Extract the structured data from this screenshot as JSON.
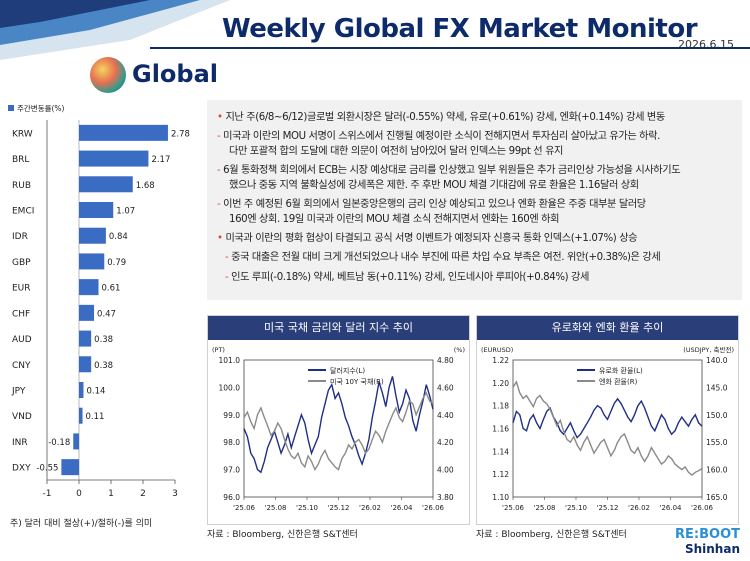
{
  "header": {
    "title": "Weekly Global FX Market Monitor",
    "date": "2026.6.15",
    "section": "Global"
  },
  "bullets": [
    {
      "type": "dot",
      "text": "지난 주(6/8~6/12)글로벌 외환시장은 달러(-0.55%) 약세, 유로(+0.61%) 강세, 엔화(+0.14%) 강세 변동"
    },
    {
      "type": "dash",
      "text": "미국과 이란의 MOU 서명이 스위스에서 진행될 예정이란 소식이 전해지면서 투자심리 살아났고 유가는 하락."
    },
    {
      "type": "cont",
      "text": "다만 포괄적 합의 도달에 대한 의문이 여전히 남아있어 달러 인덱스는 99pt 선 유지"
    },
    {
      "type": "dash",
      "text": "6월 통화정책 회의에서 ECB는 시장 예상대로 금리를 인상했고 일부 위원들은 추가 금리인상 가능성을 시사하기도"
    },
    {
      "type": "cont",
      "text": "했으나 중동 지역 불확실성에 강세폭은 제한. 주 후반 MOU 체결 기대감에 유로 환율은 1.16달러 상회"
    },
    {
      "type": "dash",
      "text": "이번 주 예정된 6월 회의에서 일본중앙은행의 금리 인상 예상되고 있으나 엔화 환율은 주중 대부분 달러당"
    },
    {
      "type": "cont",
      "text": "160엔 상회. 19일 미국과 이란의 MOU 체결 소식 전해지면서 엔화는 160엔 하회"
    },
    {
      "type": "dot",
      "text": "미국과 이란의 평화 협상이 타결되고 공식 서명 이벤트가 예정되자 신흥국 통화 인덱스(+1.07%) 상승"
    },
    {
      "type": "dash",
      "text": "중국 대출은 전월 대비 크게 개선되었으나 내수 부진에 따른 차입 수요 부족은 여전. 위안(+0.38%)은 강세"
    },
    {
      "type": "dash",
      "text": "인도 루피(-0.18%) 약세, 베트남 동(+0.11%) 강세, 인도네시아 루피아(+0.84%) 강세"
    }
  ],
  "footnote": "주) 달러 대비 절상(+)/절하(-)를 의미",
  "logo": {
    "line1": "RE:BOOT",
    "line2": "Shinhan"
  },
  "chart_data": [
    {
      "type": "bar",
      "orientation": "horizontal",
      "legend": "주간변동률(%)",
      "categories": [
        "KRW",
        "BRL",
        "RUB",
        "EMCI",
        "IDR",
        "GBP",
        "EUR",
        "CHF",
        "AUD",
        "CNY",
        "JPY",
        "VND",
        "INR",
        "DXY"
      ],
      "values": [
        2.78,
        2.17,
        1.68,
        1.07,
        0.84,
        0.79,
        0.61,
        0.47,
        0.38,
        0.38,
        0.14,
        0.11,
        -0.18,
        -0.55
      ],
      "labels": [
        "2.78",
        "2.17",
        "1.68",
        "1.07",
        "0.84",
        "0.79",
        "0.61",
        "0.47",
        "0.38",
        "0.38",
        "0.14",
        "0.11",
        "-0.18",
        "-0.55"
      ],
      "xlim": [
        -1,
        3
      ],
      "xticks": [
        "-1",
        "0",
        "1",
        "2",
        "3"
      ],
      "color": "#3b6cc4"
    },
    {
      "type": "line",
      "title": "미국 국채 금리와 달러 지수 추이",
      "y_left_unit": "(PT)",
      "y_right_unit": "(%)",
      "ylim_left": [
        96,
        101
      ],
      "ylim_right": [
        3.8,
        4.8
      ],
      "yticks_left": [
        "101.0",
        "100.0",
        "99.0",
        "98.0",
        "97.0",
        "96.0"
      ],
      "yticks_right": [
        "4.80",
        "4.60",
        "4.40",
        "4.20",
        "4.00",
        "3.80"
      ],
      "xticks": [
        "'25.06",
        "'25.08",
        "'25.10",
        "'25.12",
        "'26.02",
        "'26.04",
        "'26.06"
      ],
      "series": [
        {
          "name": "달러지수(L)",
          "color": "#1f2f86",
          "axis": "left",
          "values": [
            98.5,
            98.2,
            97.6,
            97.4,
            97.0,
            96.9,
            97.3,
            97.8,
            98.1,
            98.4,
            98.0,
            97.6,
            97.9,
            98.3,
            97.8,
            98.2,
            98.6,
            99.0,
            98.7,
            98.1,
            97.6,
            97.9,
            98.2,
            98.9,
            99.4,
            99.9,
            100.1,
            99.6,
            99.8,
            99.4,
            98.9,
            98.6,
            98.2,
            97.9,
            97.5,
            97.2,
            97.6,
            98.1,
            98.9,
            99.5,
            100.2,
            99.8,
            99.3,
            100.0,
            100.4,
            99.7,
            99.1,
            99.4,
            99.9,
            99.6,
            98.8,
            98.4,
            99.0,
            99.5,
            100.1,
            99.7,
            99.2
          ]
        },
        {
          "name": "미국 10Y 국채(R)",
          "color": "#8a8a8a",
          "axis": "right",
          "values": [
            4.38,
            4.42,
            4.35,
            4.3,
            4.4,
            4.45,
            4.38,
            4.32,
            4.25,
            4.28,
            4.34,
            4.3,
            4.22,
            4.15,
            4.1,
            4.08,
            4.12,
            4.05,
            4.02,
            4.1,
            4.06,
            4.0,
            4.04,
            4.1,
            4.14,
            4.08,
            4.05,
            4.02,
            4.0,
            4.08,
            4.12,
            4.18,
            4.15,
            4.2,
            4.22,
            4.18,
            4.12,
            4.15,
            4.22,
            4.28,
            4.25,
            4.2,
            4.28,
            4.34,
            4.4,
            4.45,
            4.38,
            4.35,
            4.42,
            4.5,
            4.48,
            4.4,
            4.46,
            4.52,
            4.56,
            4.5,
            4.48
          ]
        }
      ],
      "source": "자료 : Bloomberg, 신한은행 S&T센터"
    },
    {
      "type": "line",
      "title": "유로화와 엔화 환율 추이",
      "y_left_unit": "(EURUSD)",
      "y_right_unit": "(USDJPY, 축반전)",
      "ylim_left": [
        1.1,
        1.22
      ],
      "ylim_right": [
        140,
        165
      ],
      "right_axis_inverted": true,
      "yticks_left": [
        "1.22",
        "1.20",
        "1.18",
        "1.16",
        "1.14",
        "1.12",
        "1.10"
      ],
      "yticks_right": [
        "140.0",
        "145.0",
        "150.0",
        "155.0",
        "160.0",
        "165.0"
      ],
      "xticks": [
        "'25.06",
        "'25.08",
        "'25.10",
        "'25.12",
        "'26.02",
        "'26.04",
        "'26.06"
      ],
      "series": [
        {
          "name": "유로화 환율(L)",
          "color": "#1f2f86",
          "axis": "left",
          "values": [
            1.165,
            1.175,
            1.172,
            1.16,
            1.158,
            1.168,
            1.172,
            1.165,
            1.16,
            1.168,
            1.175,
            1.178,
            1.17,
            1.165,
            1.158,
            1.155,
            1.16,
            1.165,
            1.158,
            1.152,
            1.155,
            1.16,
            1.165,
            1.17,
            1.176,
            1.18,
            1.178,
            1.172,
            1.168,
            1.175,
            1.182,
            1.186,
            1.182,
            1.176,
            1.17,
            1.166,
            1.172,
            1.18,
            1.184,
            1.178,
            1.17,
            1.162,
            1.158,
            1.165,
            1.172,
            1.168,
            1.16,
            1.155,
            1.158,
            1.165,
            1.17,
            1.166,
            1.162,
            1.168,
            1.172,
            1.165,
            1.162
          ]
        },
        {
          "name": "엔화 환율(R)",
          "color": "#8a8a8a",
          "axis": "right",
          "values": [
            145.0,
            144.0,
            146.0,
            147.0,
            146.5,
            147.5,
            148.5,
            147.0,
            146.5,
            147.5,
            148.0,
            149.0,
            150.5,
            152.0,
            151.0,
            153.0,
            154.5,
            155.0,
            154.0,
            155.5,
            156.5,
            155.0,
            154.0,
            155.5,
            157.0,
            156.0,
            155.0,
            154.5,
            156.0,
            157.5,
            156.5,
            155.0,
            154.0,
            153.5,
            155.0,
            156.5,
            157.0,
            156.0,
            157.5,
            158.5,
            157.5,
            156.0,
            157.0,
            158.0,
            159.0,
            158.5,
            157.5,
            158.0,
            159.0,
            159.5,
            160.0,
            159.5,
            160.5,
            161.0,
            160.5,
            160.2,
            159.8
          ]
        }
      ],
      "source": "자료 : Bloomberg, 신한은행 S&T센터"
    }
  ]
}
